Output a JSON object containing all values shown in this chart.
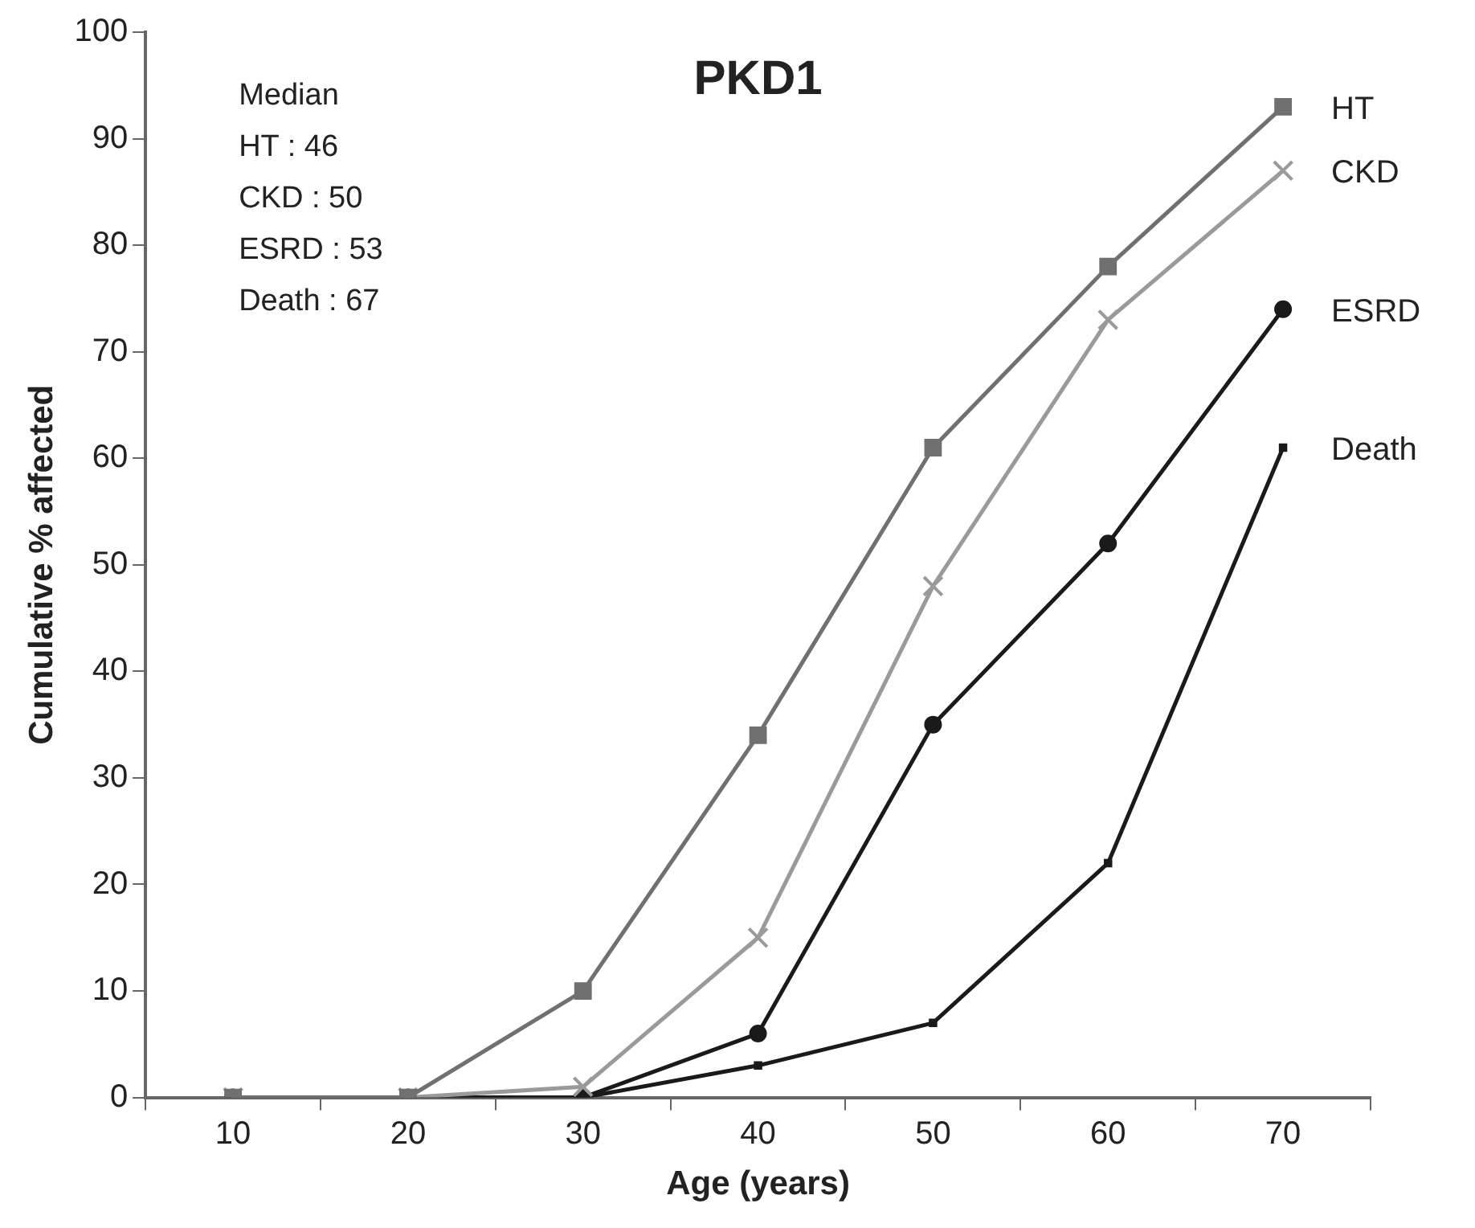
{
  "chart_data": {
    "type": "line",
    "title": "PKD1",
    "xlabel": "Age (years)",
    "ylabel": "Cumulative % affected",
    "categories": [
      "10",
      "20",
      "30",
      "40",
      "50",
      "60",
      "70"
    ],
    "series": [
      {
        "name": "HT",
        "color": "#707070",
        "marker": "square",
        "values": [
          0,
          0,
          10,
          34,
          61,
          78,
          93
        ]
      },
      {
        "name": "CKD",
        "color": "#9a9a9a",
        "marker": "cross",
        "values": [
          0,
          0,
          1,
          15,
          48,
          73,
          87
        ]
      },
      {
        "name": "ESRD",
        "color": "#1a1a1a",
        "marker": "circle",
        "values": [
          0,
          0,
          0,
          6,
          35,
          52,
          74
        ]
      },
      {
        "name": "Death",
        "color": "#1a1a1a",
        "marker": "square",
        "values": [
          0,
          0,
          0,
          3,
          7,
          22,
          61
        ]
      }
    ],
    "ylim": [
      0,
      100
    ],
    "yticks": [
      0,
      10,
      20,
      30,
      40,
      50,
      60,
      70,
      80,
      90,
      100
    ],
    "annotations": [
      "Median",
      "HT : 46",
      "CKD : 50",
      "ESRD : 53",
      "Death : 67"
    ],
    "grid": false,
    "legend": false
  }
}
